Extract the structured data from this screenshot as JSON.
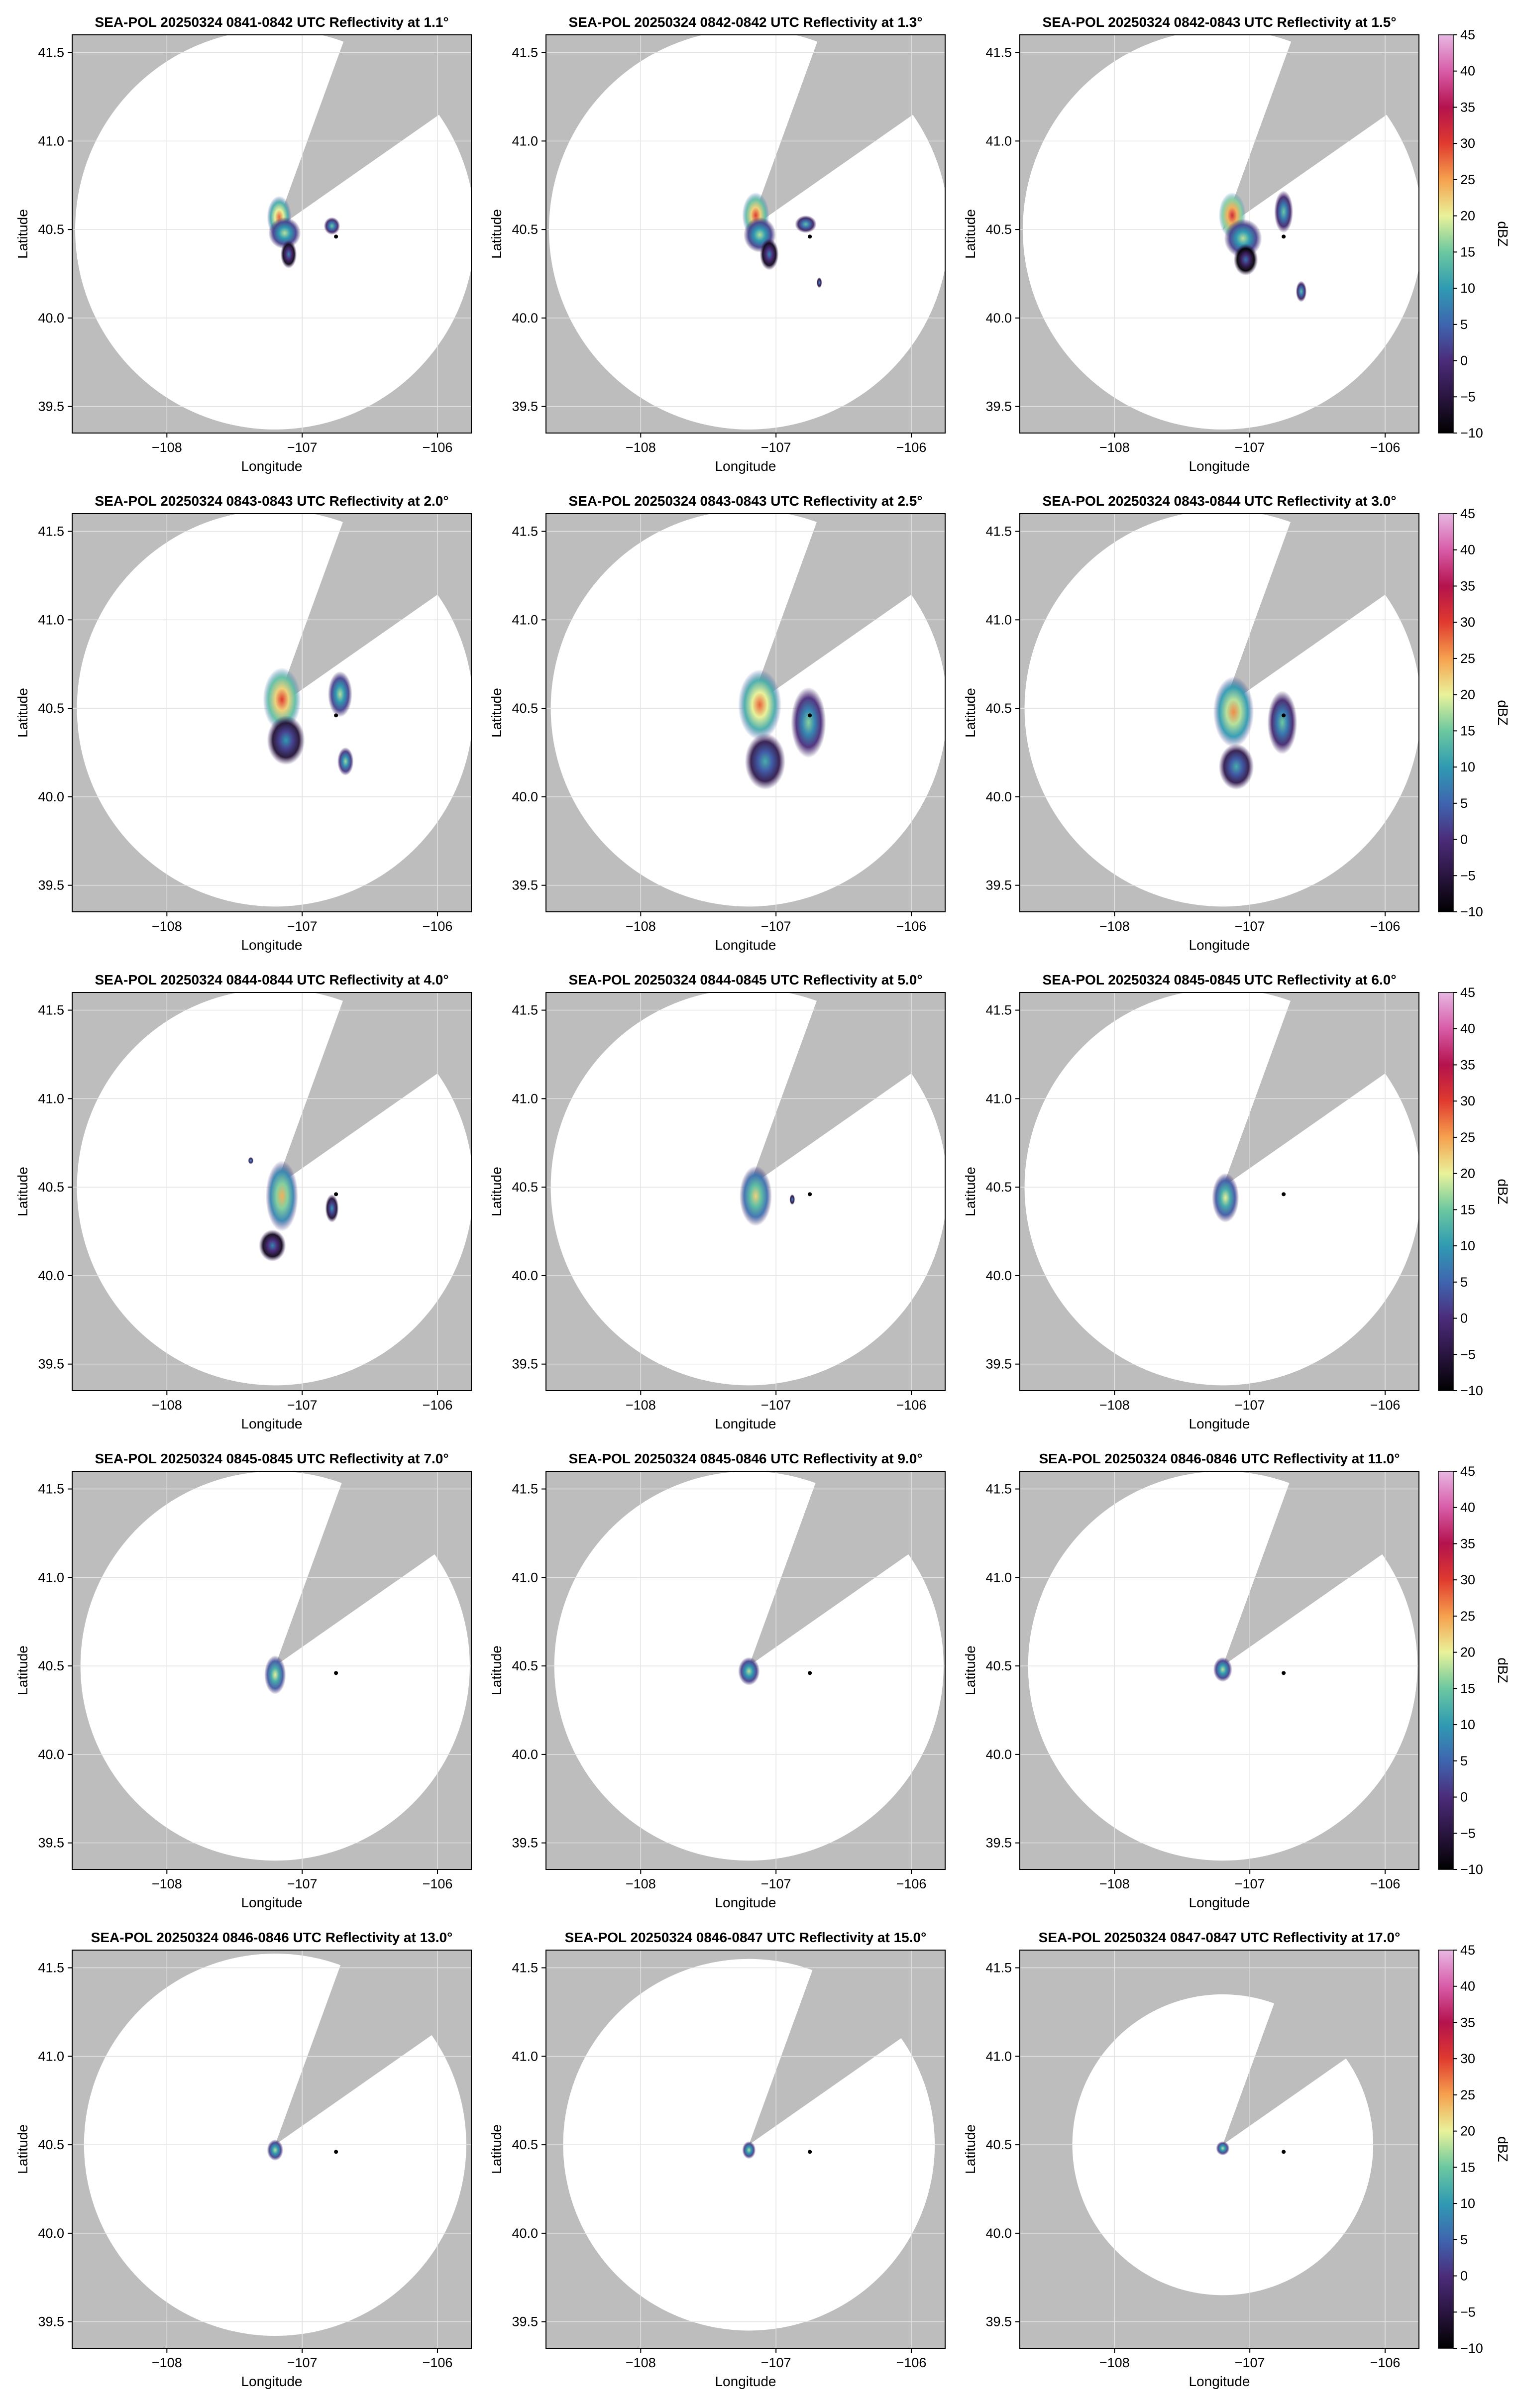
{
  "colors": {
    "background": "#ffffff",
    "nodata_gray": "#bdbdbd",
    "coverage_white": "#ffffff",
    "grid": "#e2e2e2",
    "axis": "#000000"
  },
  "colorbar": {
    "label": "dBZ",
    "min": -10,
    "max": 45,
    "ticks": [
      -10,
      -5,
      0,
      5,
      10,
      15,
      20,
      25,
      30,
      35,
      40,
      45
    ],
    "tick_labels": [
      "−10",
      "−5",
      "0",
      "5",
      "10",
      "15",
      "20",
      "25",
      "30",
      "35",
      "40",
      "45"
    ],
    "colormap_stops": [
      {
        "v": -10,
        "c": "#000000"
      },
      {
        "v": -5,
        "c": "#2a1540"
      },
      {
        "v": 0,
        "c": "#4b2c7a"
      },
      {
        "v": 5,
        "c": "#3f65b0"
      },
      {
        "v": 10,
        "c": "#2f9ab2"
      },
      {
        "v": 15,
        "c": "#6cc8a0"
      },
      {
        "v": 20,
        "c": "#e9f29a"
      },
      {
        "v": 25,
        "c": "#f6a14e"
      },
      {
        "v": 30,
        "c": "#e03a2f"
      },
      {
        "v": 35,
        "c": "#b4124d"
      },
      {
        "v": 40,
        "c": "#d85ca8"
      },
      {
        "v": 45,
        "c": "#e7b7e2"
      }
    ]
  },
  "chart_data": {
    "type": "heatmap",
    "description_units": "Reflectivity (dBZ) PPI panels on longitude/latitude axes",
    "common_axes": {
      "xlabel": "Longitude",
      "ylabel": "Latitude",
      "xlim": [
        -108.7,
        -105.75
      ],
      "ylim": [
        39.35,
        41.6
      ],
      "xticks": [
        -108,
        -107,
        -106
      ],
      "xtick_labels": [
        "−108",
        "−107",
        "−106"
      ],
      "yticks": [
        39.5,
        40.0,
        40.5,
        41.0,
        41.5
      ],
      "ytick_labels": [
        "39.5",
        "40.0",
        "40.5",
        "41.0",
        "41.5"
      ],
      "grid": true
    },
    "radar_center": {
      "lon": -107.2,
      "lat": 40.5
    },
    "marker": {
      "lon": -106.75,
      "lat": 40.46
    },
    "blanked_sector_deg": [
      20,
      55
    ],
    "panels": [
      {
        "title": "SEA-POL 20250324 0841-0842 UTC Reflectivity at 1.1°",
        "elevation": 1.1,
        "range_lat": 1.13,
        "echoes": [
          {
            "lon": -107.17,
            "lat": 40.57,
            "rlon": 0.09,
            "rlat": 0.12,
            "dbz": 28
          },
          {
            "lon": -107.13,
            "lat": 40.48,
            "rlon": 0.12,
            "rlat": 0.09,
            "dbz": 18
          },
          {
            "lon": -107.1,
            "lat": 40.36,
            "rlon": 0.06,
            "rlat": 0.08,
            "dbz": 8
          },
          {
            "lon": -106.78,
            "lat": 40.52,
            "rlon": 0.06,
            "rlat": 0.05,
            "dbz": 15
          }
        ]
      },
      {
        "title": "SEA-POL 20250324 0842-0842 UTC Reflectivity at 1.3°",
        "elevation": 1.3,
        "range_lat": 1.13,
        "echoes": [
          {
            "lon": -107.15,
            "lat": 40.58,
            "rlon": 0.1,
            "rlat": 0.13,
            "dbz": 30
          },
          {
            "lon": -107.12,
            "lat": 40.47,
            "rlon": 0.12,
            "rlat": 0.1,
            "dbz": 18
          },
          {
            "lon": -107.05,
            "lat": 40.36,
            "rlon": 0.07,
            "rlat": 0.09,
            "dbz": 8
          },
          {
            "lon": -106.78,
            "lat": 40.53,
            "rlon": 0.08,
            "rlat": 0.05,
            "dbz": 14
          },
          {
            "lon": -106.68,
            "lat": 40.2,
            "rlon": 0.02,
            "rlat": 0.03,
            "dbz": 10
          }
        ]
      },
      {
        "title": "SEA-POL 20250324 0842-0843 UTC Reflectivity at 1.5°",
        "elevation": 1.5,
        "range_lat": 1.13,
        "echoes": [
          {
            "lon": -107.13,
            "lat": 40.58,
            "rlon": 0.1,
            "rlat": 0.13,
            "dbz": 32
          },
          {
            "lon": -107.05,
            "lat": 40.45,
            "rlon": 0.14,
            "rlat": 0.11,
            "dbz": 18
          },
          {
            "lon": -107.03,
            "lat": 40.33,
            "rlon": 0.09,
            "rlat": 0.09,
            "dbz": 6
          },
          {
            "lon": -106.75,
            "lat": 40.6,
            "rlon": 0.07,
            "rlat": 0.12,
            "dbz": 15
          },
          {
            "lon": -106.62,
            "lat": 40.15,
            "rlon": 0.04,
            "rlat": 0.06,
            "dbz": 14
          }
        ]
      },
      {
        "title": "SEA-POL 20250324 0843-0843 UTC Reflectivity at 2.0°",
        "elevation": 2.0,
        "range_lat": 1.12,
        "echoes": [
          {
            "lon": -107.15,
            "lat": 40.55,
            "rlon": 0.14,
            "rlat": 0.18,
            "dbz": 30
          },
          {
            "lon": -107.12,
            "lat": 40.32,
            "rlon": 0.14,
            "rlat": 0.14,
            "dbz": 10
          },
          {
            "lon": -106.72,
            "lat": 40.58,
            "rlon": 0.09,
            "rlat": 0.13,
            "dbz": 18
          },
          {
            "lon": -106.68,
            "lat": 40.2,
            "rlon": 0.06,
            "rlat": 0.08,
            "dbz": 17
          }
        ]
      },
      {
        "title": "SEA-POL 20250324 0843-0843 UTC Reflectivity at 2.5°",
        "elevation": 2.5,
        "range_lat": 1.12,
        "echoes": [
          {
            "lon": -107.12,
            "lat": 40.52,
            "rlon": 0.16,
            "rlat": 0.2,
            "dbz": 28
          },
          {
            "lon": -107.08,
            "lat": 40.2,
            "rlon": 0.15,
            "rlat": 0.16,
            "dbz": 12
          },
          {
            "lon": -106.76,
            "lat": 40.42,
            "rlon": 0.13,
            "rlat": 0.2,
            "dbz": 16
          }
        ]
      },
      {
        "title": "SEA-POL 20250324 0843-0844 UTC Reflectivity at 3.0°",
        "elevation": 3.0,
        "range_lat": 1.12,
        "echoes": [
          {
            "lon": -107.12,
            "lat": 40.48,
            "rlon": 0.15,
            "rlat": 0.2,
            "dbz": 26
          },
          {
            "lon": -107.1,
            "lat": 40.17,
            "rlon": 0.13,
            "rlat": 0.13,
            "dbz": 12
          },
          {
            "lon": -106.76,
            "lat": 40.42,
            "rlon": 0.11,
            "rlat": 0.18,
            "dbz": 15
          }
        ]
      },
      {
        "title": "SEA-POL 20250324 0844-0844 UTC Reflectivity at 4.0°",
        "elevation": 4.0,
        "range_lat": 1.12,
        "echoes": [
          {
            "lon": -107.15,
            "lat": 40.45,
            "rlon": 0.12,
            "rlat": 0.2,
            "dbz": 24
          },
          {
            "lon": -107.22,
            "lat": 40.17,
            "rlon": 0.1,
            "rlat": 0.09,
            "dbz": 8
          },
          {
            "lon": -106.78,
            "lat": 40.38,
            "rlon": 0.05,
            "rlat": 0.08,
            "dbz": 10
          },
          {
            "lon": -107.38,
            "lat": 40.65,
            "rlon": 0.02,
            "rlat": 0.02,
            "dbz": 12
          }
        ]
      },
      {
        "title": "SEA-POL 20250324 0844-0845 UTC Reflectivity at 5.0°",
        "elevation": 5.0,
        "range_lat": 1.12,
        "echoes": [
          {
            "lon": -107.15,
            "lat": 40.45,
            "rlon": 0.12,
            "rlat": 0.17,
            "dbz": 22
          },
          {
            "lon": -106.88,
            "lat": 40.43,
            "rlon": 0.02,
            "rlat": 0.03,
            "dbz": 10
          }
        ]
      },
      {
        "title": "SEA-POL 20250324 0845-0845 UTC Reflectivity at 6.0°",
        "elevation": 6.0,
        "range_lat": 1.12,
        "echoes": [
          {
            "lon": -107.18,
            "lat": 40.44,
            "rlon": 0.1,
            "rlat": 0.14,
            "dbz": 20
          }
        ]
      },
      {
        "title": "SEA-POL 20250324 0845-0845 UTC Reflectivity at 7.0°",
        "elevation": 7.0,
        "range_lat": 1.1,
        "echoes": [
          {
            "lon": -107.2,
            "lat": 40.45,
            "rlon": 0.08,
            "rlat": 0.11,
            "dbz": 20
          }
        ]
      },
      {
        "title": "SEA-POL 20250324 0845-0846 UTC Reflectivity at 9.0°",
        "elevation": 9.0,
        "range_lat": 1.1,
        "echoes": [
          {
            "lon": -107.2,
            "lat": 40.47,
            "rlon": 0.08,
            "rlat": 0.08,
            "dbz": 18
          }
        ]
      },
      {
        "title": "SEA-POL 20250324 0846-0846 UTC Reflectivity at 11.0°",
        "elevation": 11.0,
        "range_lat": 1.1,
        "echoes": [
          {
            "lon": -107.2,
            "lat": 40.48,
            "rlon": 0.07,
            "rlat": 0.07,
            "dbz": 18
          }
        ]
      },
      {
        "title": "SEA-POL 20250324 0846-0846 UTC Reflectivity at 13.0°",
        "elevation": 13.0,
        "range_lat": 1.08,
        "echoes": [
          {
            "lon": -107.2,
            "lat": 40.47,
            "rlon": 0.06,
            "rlat": 0.06,
            "dbz": 18
          }
        ]
      },
      {
        "title": "SEA-POL 20250324 0846-0847 UTC Reflectivity at 15.0°",
        "elevation": 15.0,
        "range_lat": 1.05,
        "echoes": [
          {
            "lon": -107.2,
            "lat": 40.47,
            "rlon": 0.05,
            "rlat": 0.05,
            "dbz": 18
          }
        ]
      },
      {
        "title": "SEA-POL 20250324 0847-0847 UTC Reflectivity at 17.0°",
        "elevation": 17.0,
        "range_lat": 0.85,
        "echoes": [
          {
            "lon": -107.2,
            "lat": 40.48,
            "rlon": 0.05,
            "rlat": 0.04,
            "dbz": 18
          }
        ]
      }
    ]
  }
}
